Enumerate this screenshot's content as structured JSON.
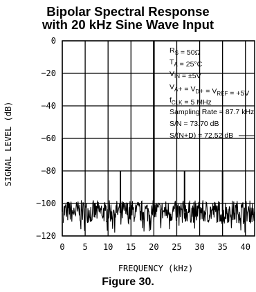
{
  "chart_data": {
    "type": "line",
    "title_line1": "Bipolar Spectral Response",
    "title_line2": "with 20 kHz Sine Wave Input",
    "caption": "Figure 30.",
    "xlabel": "FREQUENCY (kHz)",
    "ylabel": "SIGNAL LEVEL (dB)",
    "xlim": [
      0,
      42
    ],
    "ylim": [
      -120,
      0
    ],
    "xticks": [
      0,
      5,
      10,
      15,
      20,
      25,
      30,
      35,
      40
    ],
    "yticks": [
      0,
      -20,
      -40,
      -60,
      -80,
      -100,
      -120
    ],
    "grid": true,
    "noise_floor_db": -105,
    "series": [
      {
        "values_description": "FFT spectrum",
        "peaks": [
          {
            "x": 0,
            "y": -60
          },
          {
            "x": 12.7,
            "y": -80
          },
          {
            "x": 20,
            "y": 0
          },
          {
            "x": 26.7,
            "y": -80
          },
          {
            "x": 35.0,
            "y": -80
          }
        ]
      }
    ],
    "annotations": [
      {
        "text": "R",
        "sub": "S",
        "rest": " = 50Ω"
      },
      {
        "text": "T",
        "sub": "A",
        "rest": " = 25°C"
      },
      {
        "text": "V",
        "sub": "IN",
        "rest": " = ±5V"
      },
      {
        "text": "V",
        "sub": "A",
        "rest": "+ = V",
        "sub2": "D",
        "rest2": "+ = V",
        "sub3": "REF",
        "rest3": " = +5V"
      },
      {
        "text": "f",
        "sub": "CLK",
        "rest": " = 5 MHz"
      },
      {
        "text": "Sampling Rate = 87.7 kHz"
      },
      {
        "text": "S/N = 73.70 dB"
      },
      {
        "text": "S/(N+D) = 72.52 dB"
      }
    ]
  }
}
